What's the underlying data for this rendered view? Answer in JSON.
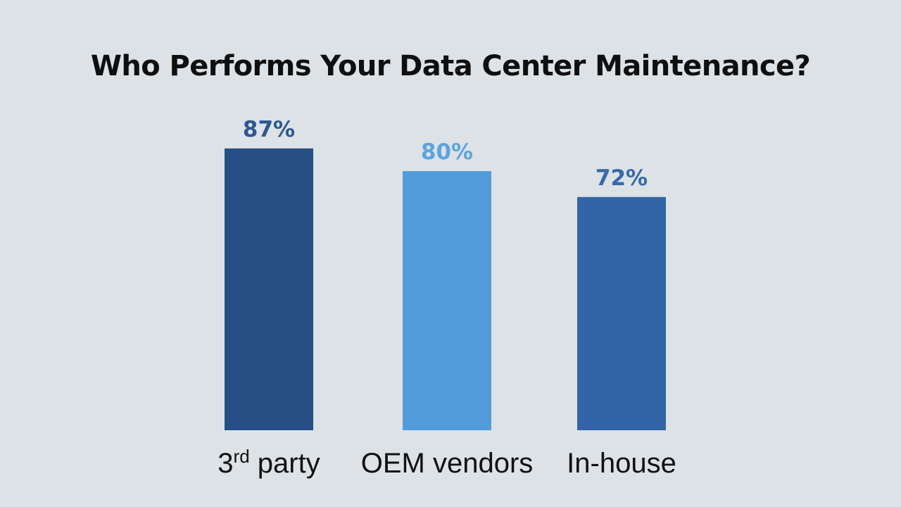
{
  "chart_data": {
    "type": "bar",
    "title": "Who Performs Your Data Center Maintenance?",
    "categories": [
      {
        "parts": [
          "3",
          "rd",
          " party"
        ]
      },
      {
        "parts": [
          "OEM vendors"
        ]
      },
      {
        "parts": [
          "In-house"
        ]
      }
    ],
    "values": [
      87,
      80,
      72
    ],
    "value_labels": [
      "87%",
      "80%",
      "72%"
    ],
    "bar_colors": [
      "#264f85",
      "#529cda",
      "#3165a7"
    ],
    "label_colors": [
      "#2c5891",
      "#5ba4df",
      "#3869a9"
    ],
    "ylim": [
      0,
      100
    ],
    "grid": false,
    "legend": "none"
  },
  "colors": {
    "background": "#dde2e6",
    "title": "#0f0f0f",
    "category_text": "#111111"
  }
}
